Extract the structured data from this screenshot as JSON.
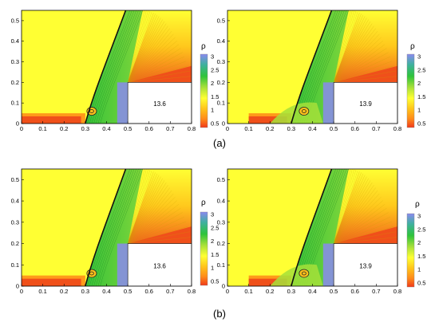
{
  "figure": {
    "row_labels": [
      "(a)",
      "(b)"
    ],
    "colorbar": {
      "symbol": "ρ",
      "ticks": [
        "3",
        "2.5",
        "2",
        "1.5",
        "1",
        "0.5"
      ],
      "colors": [
        "#8a8af0",
        "#3fb0a0",
        "#2ec43a",
        "#a6e03a",
        "#ffff33",
        "#ffc21a",
        "#ff8c1a",
        "#f03a1a"
      ]
    },
    "axes": {
      "x_ticks": [
        "0",
        "0.1",
        "0.2",
        "0.3",
        "0.4",
        "0.5",
        "0.6",
        "0.7",
        "0.8"
      ],
      "y_ticks": [
        "0",
        "0.1",
        "0.2",
        "0.3",
        "0.4",
        "0.5"
      ]
    },
    "panels": [
      {
        "annotation": "13.6"
      },
      {
        "annotation": "13.9"
      },
      {
        "annotation": "13.6"
      },
      {
        "annotation": "13.9"
      }
    ],
    "colors": {
      "freestream": "#ffff33",
      "post_shock": "#2ec43a",
      "fan_red": "#f0501a",
      "fan_orange": "#ff9a1a",
      "core_purple": "#8a8af0",
      "shock_line": "#111111"
    }
  }
}
